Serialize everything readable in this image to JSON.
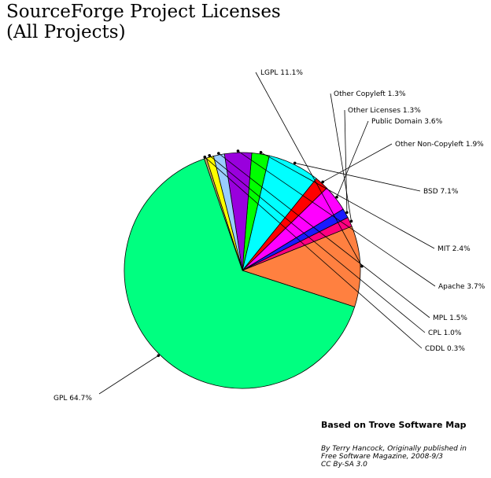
{
  "title_line1": "SourceForge Project Licenses",
  "title_line2": "(All Projects)",
  "source_title": "Based on Trove Software Map",
  "credit": {
    "line1": "By Terry Hancock, Originally published in",
    "line2": "Free Software Magazine, 2008-9/3",
    "line3": "CC By-SA 3.0"
  },
  "chart_data": {
    "type": "pie",
    "title": "SourceForge Project Licenses (All Projects)",
    "slices": [
      {
        "label": "LGPL 11.1%",
        "name": "LGPL",
        "value": 11.1,
        "color": "#ff8040"
      },
      {
        "label": "Other Copyleft 1.3%",
        "name": "Other Copyleft",
        "value": 1.3,
        "color": "#ff0080"
      },
      {
        "label": "Other Licenses 1.3%",
        "name": "Other Licenses",
        "value": 1.3,
        "color": "#1a1aff"
      },
      {
        "label": "Public Domain 3.6%",
        "name": "Public Domain",
        "value": 3.6,
        "color": "#ff00ff"
      },
      {
        "label": "Other Non-Copyleft 1.9%",
        "name": "Other Non-Copyleft",
        "value": 1.9,
        "color": "#ff0000"
      },
      {
        "label": "BSD 7.1%",
        "name": "BSD",
        "value": 7.1,
        "color": "#00ffff"
      },
      {
        "label": "MIT 2.4%",
        "name": "MIT",
        "value": 2.4,
        "color": "#00ff00"
      },
      {
        "label": "Apache 3.7%",
        "name": "Apache",
        "value": 3.7,
        "color": "#9900dd"
      },
      {
        "label": "MPL 1.5%",
        "name": "MPL",
        "value": 1.5,
        "color": "#99ccff"
      },
      {
        "label": "CPL 1.0%",
        "name": "CPL",
        "value": 1.0,
        "color": "#ffff00"
      },
      {
        "label": "CDDL 0.3%",
        "name": "CDDL",
        "value": 0.3,
        "color": "#ccaa66"
      },
      {
        "label": "GPL 64.7%",
        "name": "GPL",
        "value": 64.7,
        "color": "#00ff80"
      }
    ]
  }
}
